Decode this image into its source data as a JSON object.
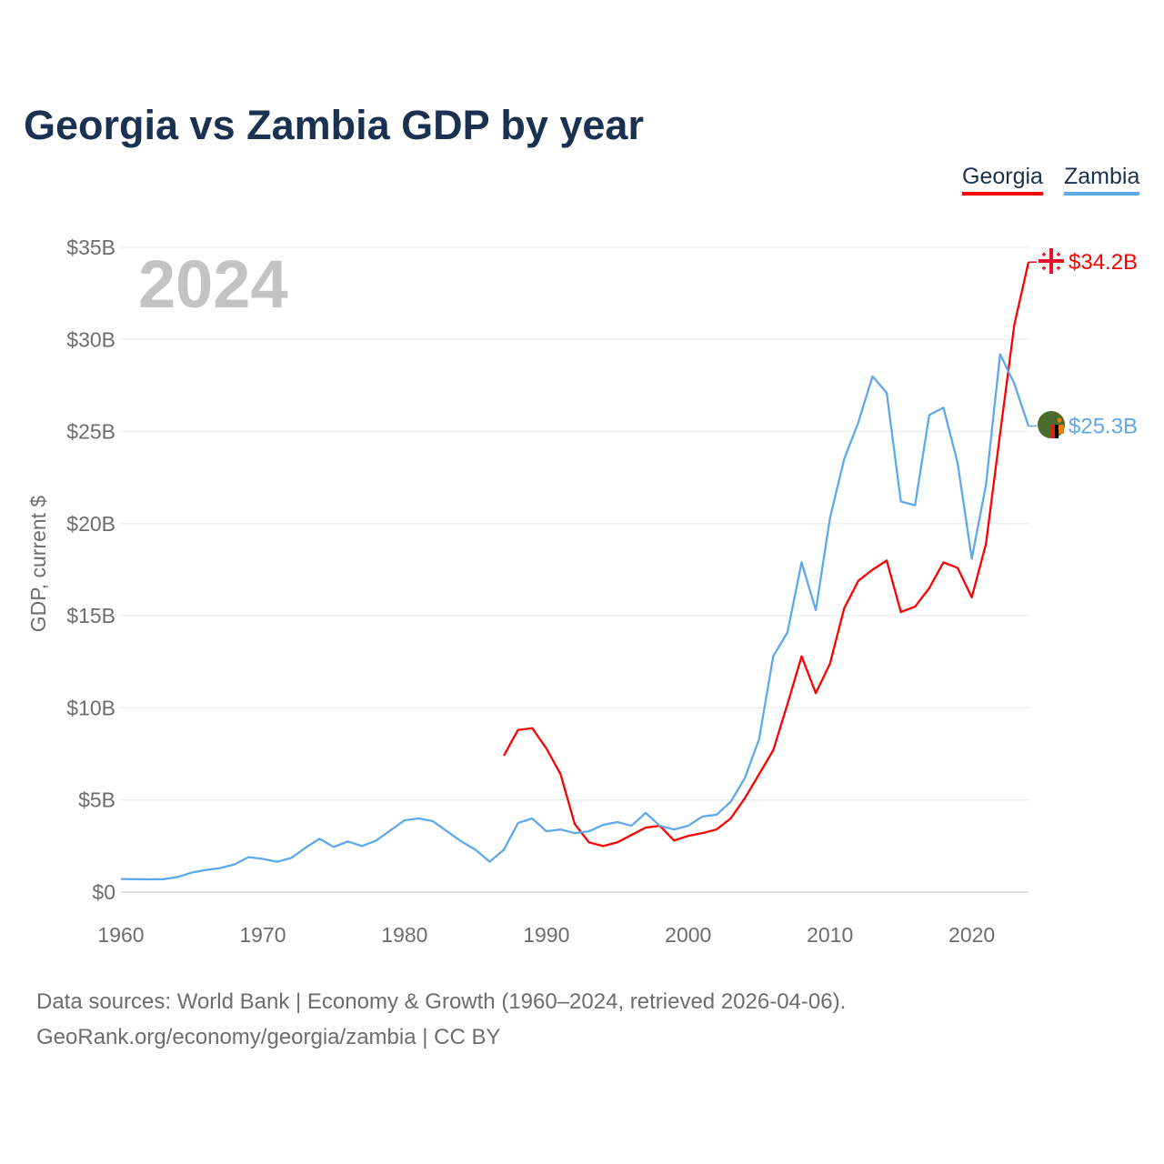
{
  "title": "Georgia vs Zambia GDP by year",
  "legend": [
    {
      "name": "Georgia",
      "color": "#ff0000"
    },
    {
      "name": "Zambia",
      "color": "#5fa8ec"
    }
  ],
  "year_label": "2024",
  "footer": {
    "line1": "Data sources: World Bank | Economy & Growth (1960–2024, retrieved 2026-04-06).",
    "line2": "GeoRank.org/economy/georgia/zambia | CC BY"
  },
  "chart_data": {
    "type": "line",
    "title": "Georgia vs Zambia GDP by year",
    "xlabel": "",
    "ylabel": "GDP, current $",
    "xlim": [
      1960,
      2024
    ],
    "ylim": [
      0,
      35
    ],
    "x_ticks": [
      "1960",
      "1970",
      "1980",
      "1990",
      "2000",
      "2010",
      "2020"
    ],
    "y_ticks": [
      "$0",
      "$5B",
      "$10B",
      "$15B",
      "$20B",
      "$25B",
      "$30B",
      "$35B"
    ],
    "grid": true,
    "legend_position": "top-right",
    "series": [
      {
        "name": "Georgia",
        "color": "#ff0000",
        "start_year": 1987,
        "end_label": "$34.2B",
        "values": [
          7.4,
          8.8,
          8.9,
          7.8,
          6.4,
          3.7,
          2.7,
          2.5,
          2.7,
          3.1,
          3.5,
          3.6,
          2.8,
          3.05,
          3.2,
          3.4,
          4.0,
          5.1,
          6.4,
          7.7,
          10.2,
          12.8,
          10.8,
          12.4,
          15.4,
          16.9,
          17.5,
          18.0,
          15.2,
          15.5,
          16.5,
          17.9,
          17.6,
          16.0,
          18.9,
          24.9,
          30.8,
          34.2
        ]
      },
      {
        "name": "Zambia",
        "color": "#5fa8ec",
        "start_year": 1960,
        "end_label": "$25.3B",
        "values": [
          0.71,
          0.7,
          0.69,
          0.7,
          0.82,
          1.06,
          1.2,
          1.3,
          1.5,
          1.9,
          1.8,
          1.65,
          1.85,
          2.4,
          2.9,
          2.45,
          2.75,
          2.5,
          2.8,
          3.35,
          3.9,
          4.0,
          3.85,
          3.3,
          2.75,
          2.3,
          1.65,
          2.3,
          3.75,
          4.0,
          3.3,
          3.4,
          3.2,
          3.3,
          3.65,
          3.8,
          3.6,
          4.3,
          3.6,
          3.4,
          3.6,
          4.1,
          4.2,
          4.9,
          6.2,
          8.3,
          12.8,
          14.1,
          17.9,
          15.3,
          20.3,
          23.5,
          25.5,
          28.0,
          27.1,
          21.2,
          21.0,
          25.9,
          26.3,
          23.3,
          18.1,
          22.1,
          29.2,
          27.6,
          25.3
        ]
      }
    ]
  }
}
